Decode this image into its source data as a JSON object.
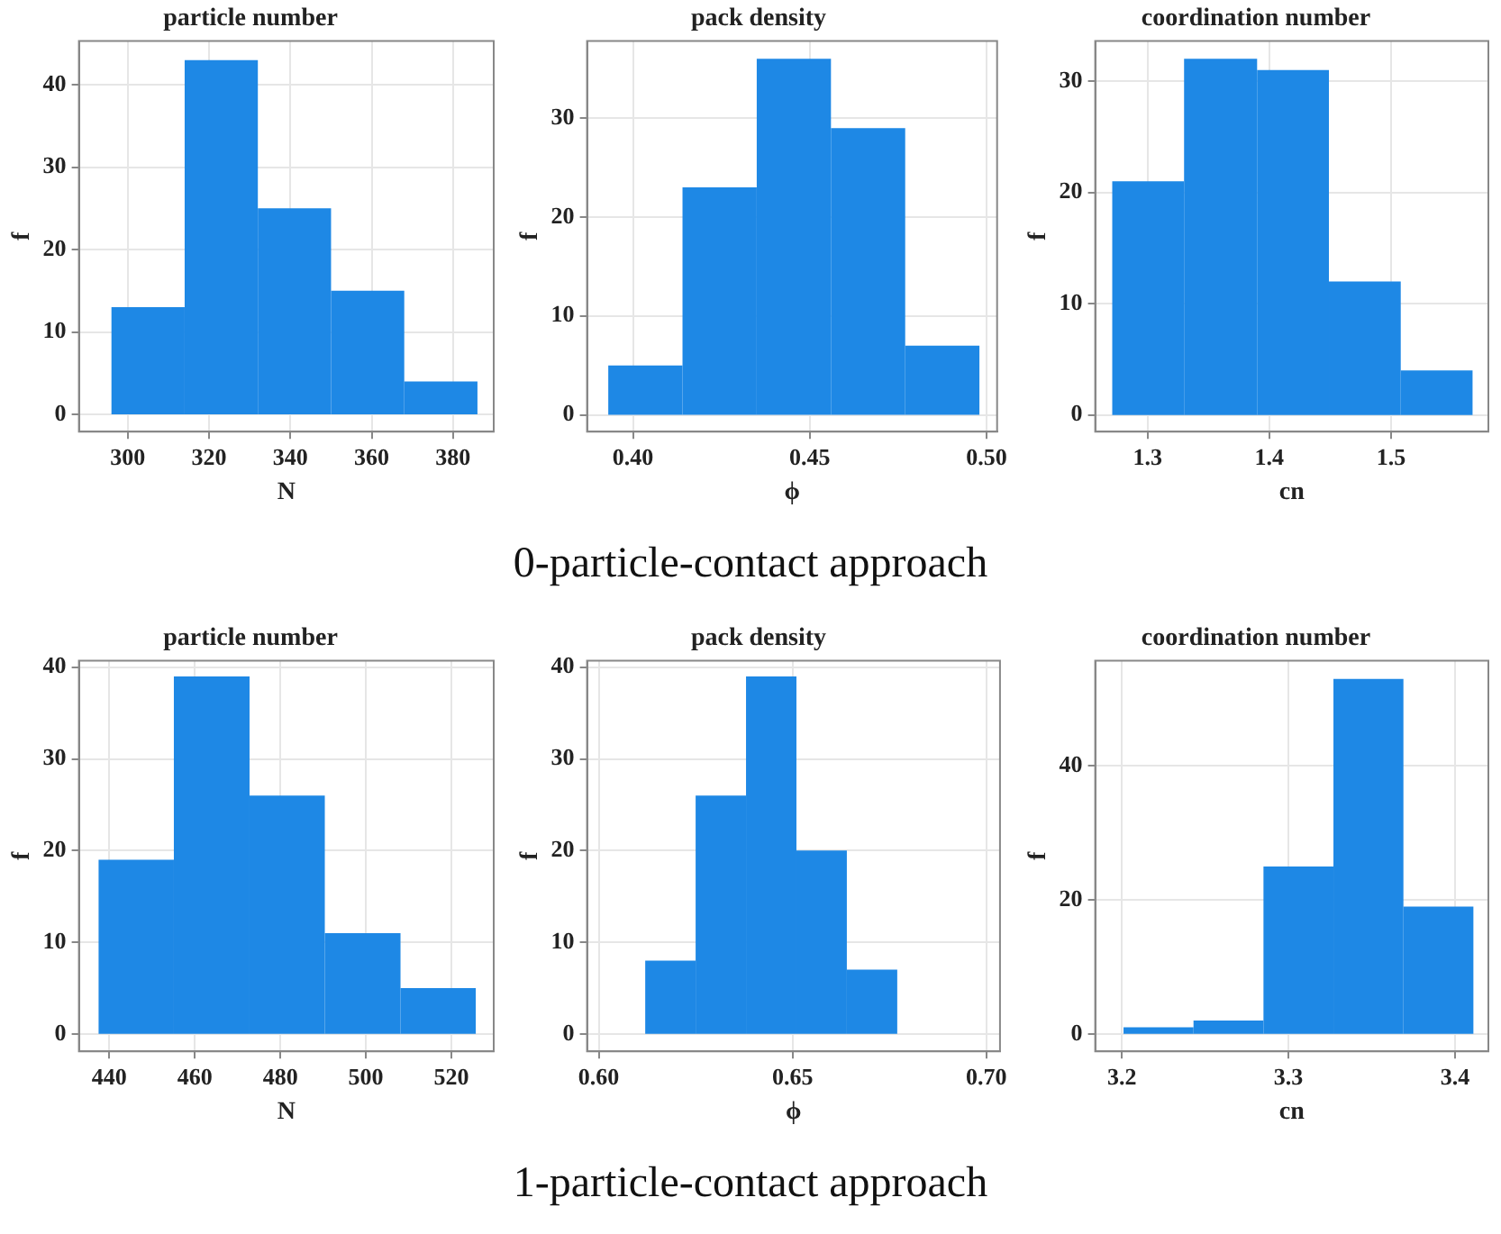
{
  "chart_data": [
    {
      "type": "histogram",
      "title": "particle number",
      "xlabel": "N",
      "ylabel": "f",
      "bins": [
        296,
        314,
        332,
        350,
        368,
        386
      ],
      "values": [
        13,
        43,
        25,
        15,
        4
      ],
      "color": "#1e88e5",
      "xlim": [
        288,
        390
      ],
      "ylim": [
        -2.1,
        45.3
      ],
      "xticks": [
        300,
        320,
        340,
        360,
        380
      ],
      "yticks": [
        0,
        10,
        20,
        30,
        40
      ],
      "grid": true
    },
    {
      "type": "histogram",
      "title": "pack density",
      "xlabel": "ϕ",
      "ylabel": "f",
      "bins": [
        0.393,
        0.414,
        0.435,
        0.456,
        0.477,
        0.498
      ],
      "values": [
        5,
        23,
        36,
        29,
        7
      ],
      "color": "#1e88e5",
      "xlim": [
        0.387,
        0.503
      ],
      "ylim": [
        -1.7,
        37.8
      ],
      "xticks": [
        {
          "value": 0.4,
          "label": "0.40"
        },
        0.45,
        {
          "value": 0.5,
          "label": "0.50"
        }
      ],
      "yticks": [
        0,
        10,
        20,
        30
      ],
      "grid": true
    },
    {
      "type": "histogram",
      "title": "coordination number",
      "xlabel": "cn",
      "ylabel": "f",
      "bins": [
        1.271,
        1.33,
        1.39,
        1.449,
        1.508,
        1.567
      ],
      "values": [
        21,
        32,
        31,
        12,
        4
      ],
      "color": "#1e88e5",
      "xlim": [
        1.257,
        1.58
      ],
      "ylim": [
        -1.5,
        33.6
      ],
      "xticks": [
        1.3,
        1.4,
        1.5
      ],
      "yticks": [
        0,
        10,
        20,
        30
      ],
      "grid": true
    },
    {
      "type": "other",
      "title": "0-particle-contact approach"
    },
    {
      "type": "histogram",
      "title": "particle number",
      "xlabel": "N",
      "ylabel": "f",
      "bins": [
        437.5,
        455.1,
        472.8,
        490.4,
        508.1,
        525.7
      ],
      "values": [
        19,
        39,
        26,
        11,
        5
      ],
      "color": "#1e88e5",
      "xlim": [
        432.9,
        529.9
      ],
      "ylim": [
        -1.9,
        40.7
      ],
      "xticks": [
        440,
        460,
        480,
        500,
        520
      ],
      "yticks": [
        0,
        10,
        20,
        30,
        40
      ],
      "grid": true
    },
    {
      "type": "histogram",
      "title": "pack density",
      "xlabel": "ϕ",
      "ylabel": "f",
      "bins": [
        0.612,
        0.625,
        0.638,
        0.651,
        0.664,
        0.677
      ],
      "values": [
        8,
        26,
        39,
        20,
        7
      ],
      "color": "#1e88e5",
      "xlim": [
        0.597,
        0.7035
      ],
      "ylim": [
        -1.9,
        40.7
      ],
      "xticks": [
        {
          "value": 0.6,
          "label": "0.60"
        },
        0.65,
        {
          "value": 0.7,
          "label": "0.70"
        }
      ],
      "yticks": [
        0,
        10,
        20,
        30,
        40
      ],
      "grid": true
    },
    {
      "type": "histogram",
      "title": "coordination number",
      "xlabel": "cn",
      "ylabel": "f",
      "bins": [
        3.201,
        3.243,
        3.285,
        3.327,
        3.369,
        3.411
      ],
      "values": [
        1,
        2,
        25,
        53,
        19
      ],
      "color": "#1e88e5",
      "xlim": [
        3.184,
        3.42
      ],
      "ylim": [
        -2.6,
        55.7
      ],
      "xticks": [
        3.2,
        3.3,
        3.4
      ],
      "yticks": [
        0,
        20,
        40
      ],
      "grid": true
    },
    {
      "type": "other",
      "title": "1-particle-contact approach"
    }
  ]
}
